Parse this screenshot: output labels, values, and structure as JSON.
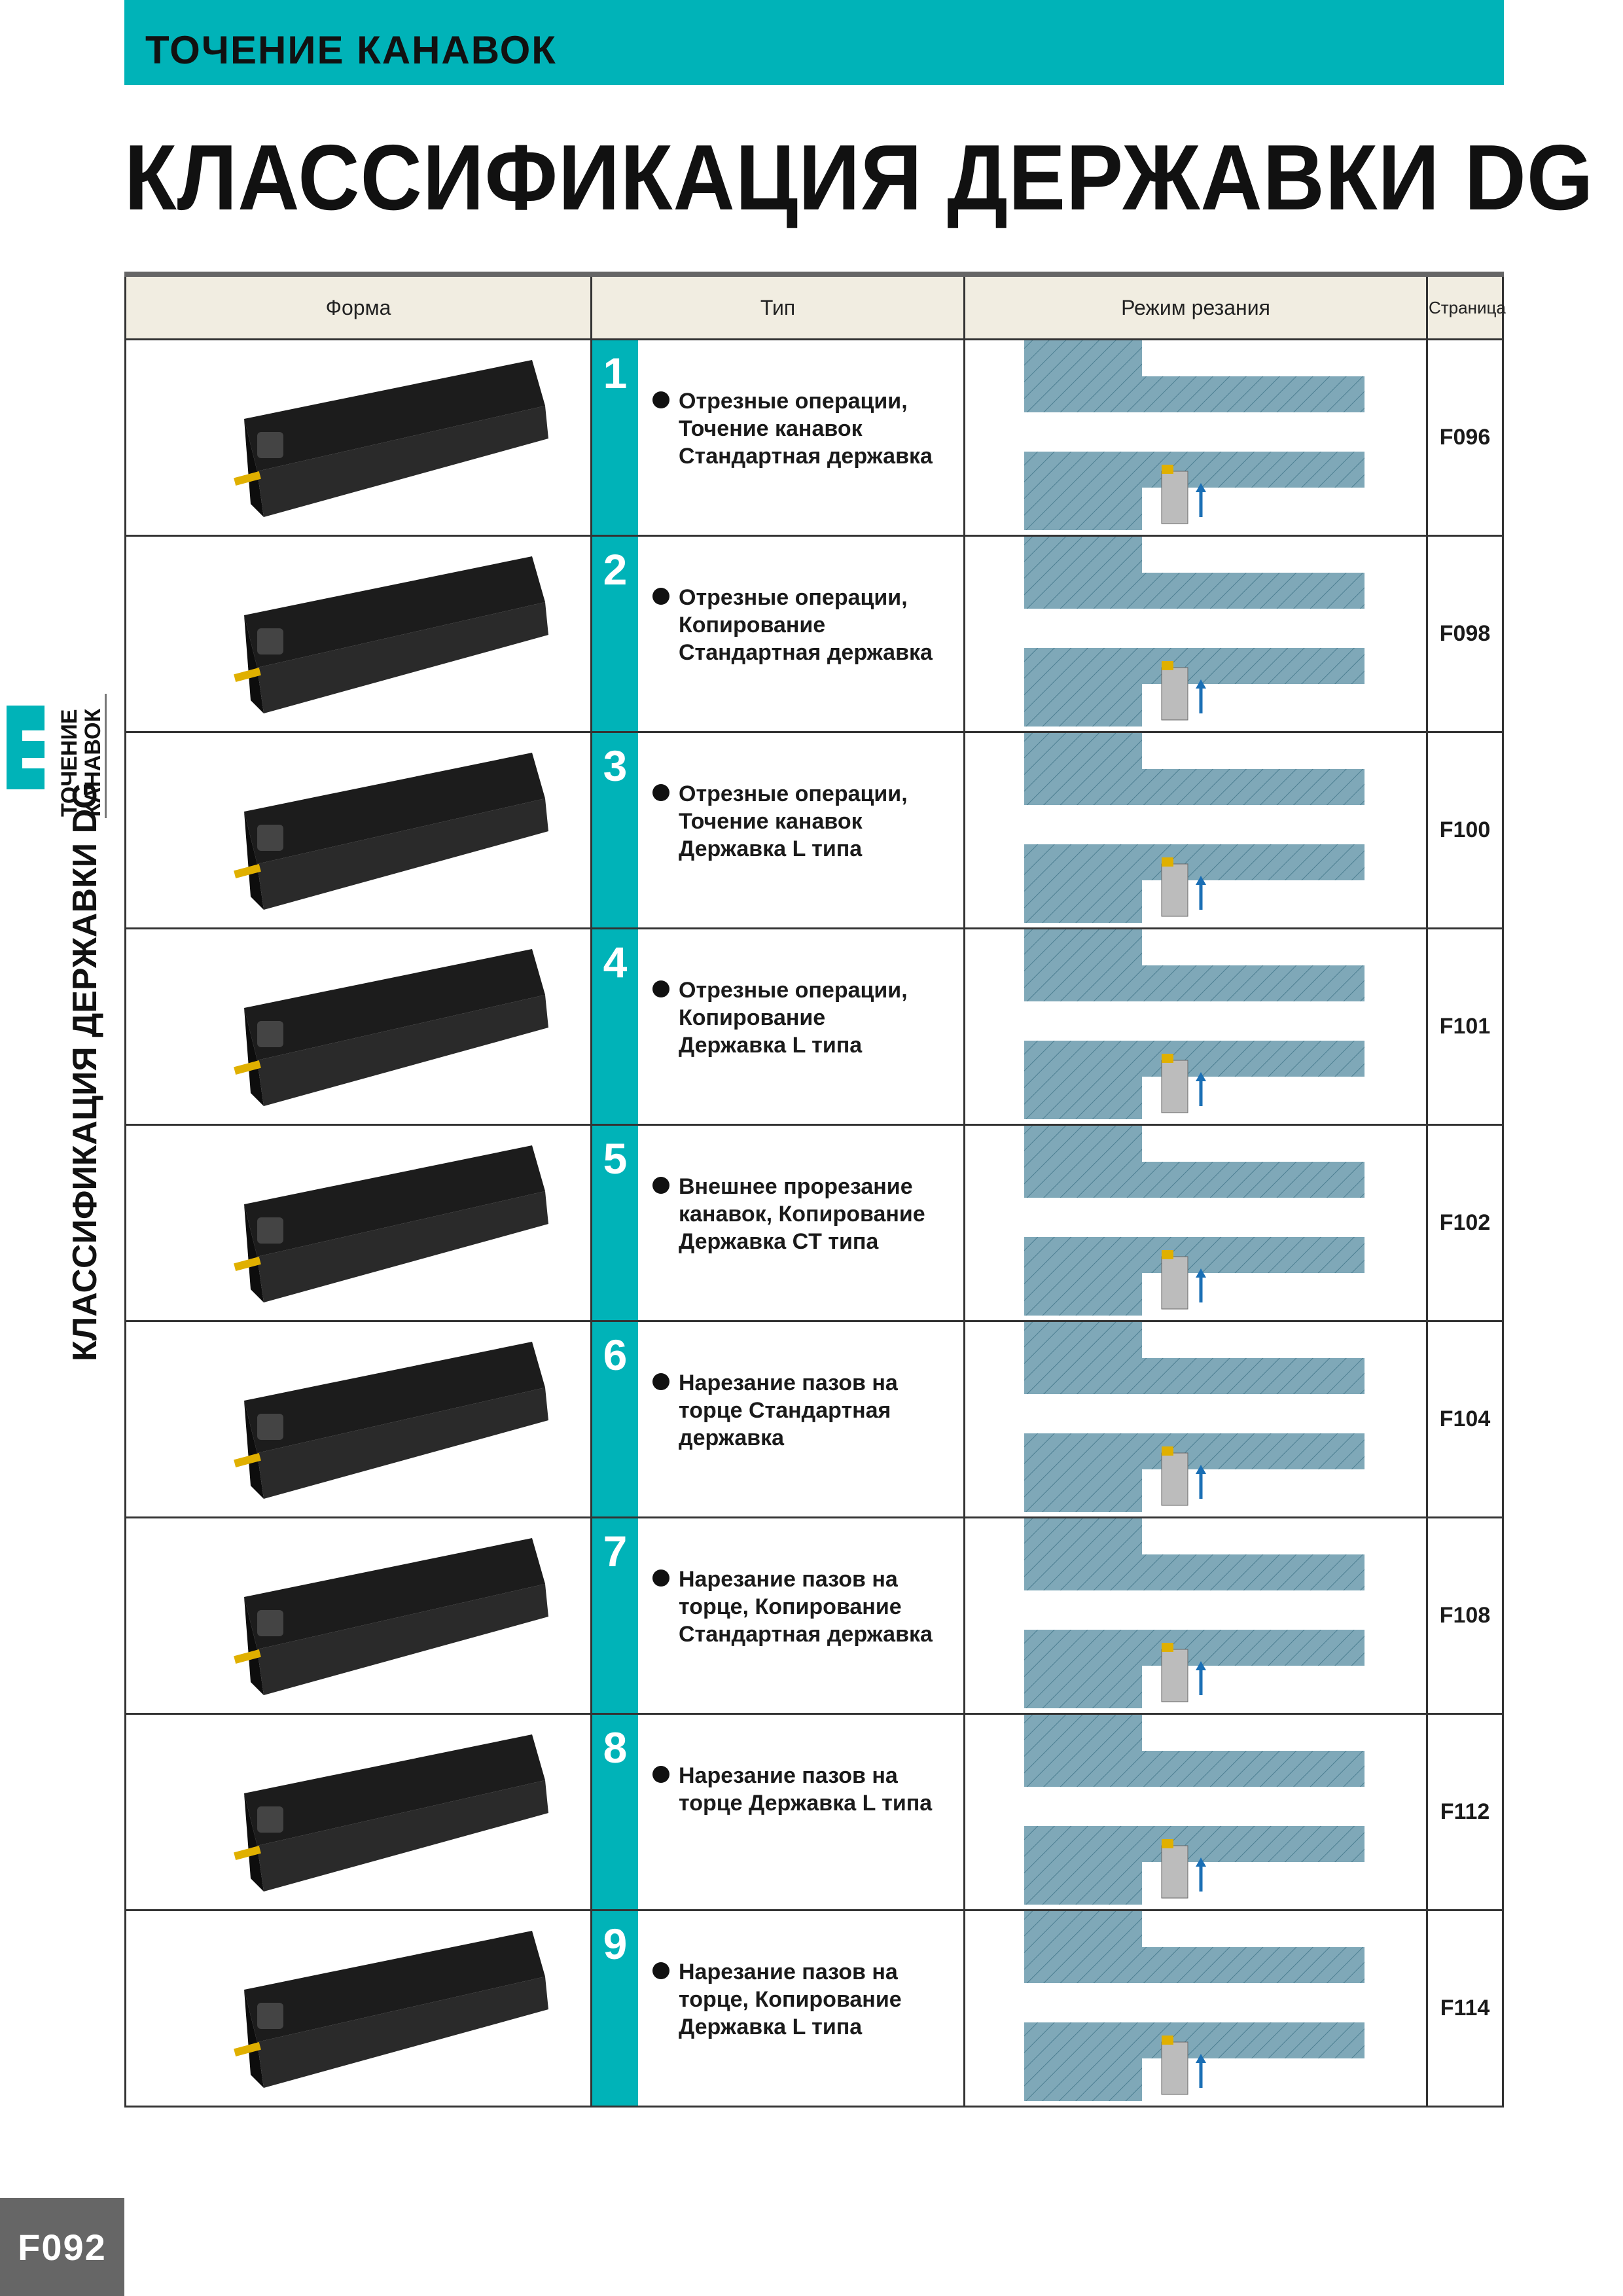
{
  "header": {
    "section_title": "ТОЧЕНИЕ КАНАВОК",
    "main_title": "КЛАССИФИКАЦИЯ ДЕРЖАВКИ DG"
  },
  "side": {
    "tab_line1": "ТОЧЕНИЕ",
    "tab_line2": "КАНАВОК",
    "vertical_title": "КЛАССИФИКАЦИЯ ДЕРЖАВКИ DG"
  },
  "table": {
    "headers": {
      "form": "Форма",
      "type": "Тип",
      "mode": "Режим резания",
      "page": "Страница"
    },
    "rows": [
      {
        "num": "1",
        "lines": [
          "Отрезные операции,",
          "Точение канавок",
          "Стандартная державка"
        ],
        "page": "F096"
      },
      {
        "num": "2",
        "lines": [
          "Отрезные операции,",
          "Копирование",
          "Стандартная державка"
        ],
        "page": "F098"
      },
      {
        "num": "3",
        "lines": [
          "Отрезные операции,",
          "Точение канавок",
          "Державка L типа"
        ],
        "page": "F100"
      },
      {
        "num": "4",
        "lines": [
          "Отрезные операции,",
          "Копирование",
          "Державка L типа"
        ],
        "page": "F101"
      },
      {
        "num": "5",
        "lines": [
          "Внешнее прорезание",
          "канавок, Копирование",
          "Державка CT типа"
        ],
        "page": "F102"
      },
      {
        "num": "6",
        "lines": [
          "Нарезание пазов на",
          "торце Стандартная",
          "державка"
        ],
        "page": "F104"
      },
      {
        "num": "7",
        "lines": [
          "Нарезание пазов на",
          "торце, Копирование",
          "Стандартная державка"
        ],
        "page": "F108"
      },
      {
        "num": "8",
        "lines": [
          "Нарезание пазов на",
          "торце Державка L типа"
        ],
        "page": "F112"
      },
      {
        "num": "9",
        "lines": [
          "Нарезание пазов на",
          "торце, Копирование",
          "Державка L типа"
        ],
        "page": "F114"
      }
    ]
  },
  "footer": {
    "page_number": "F092"
  },
  "colors": {
    "accent": "#00b3b8",
    "header_cell": "#f1ede1",
    "workpiece": "#7fa8b8",
    "arrow": "#1a6fb5",
    "insert": "#e0b000"
  }
}
